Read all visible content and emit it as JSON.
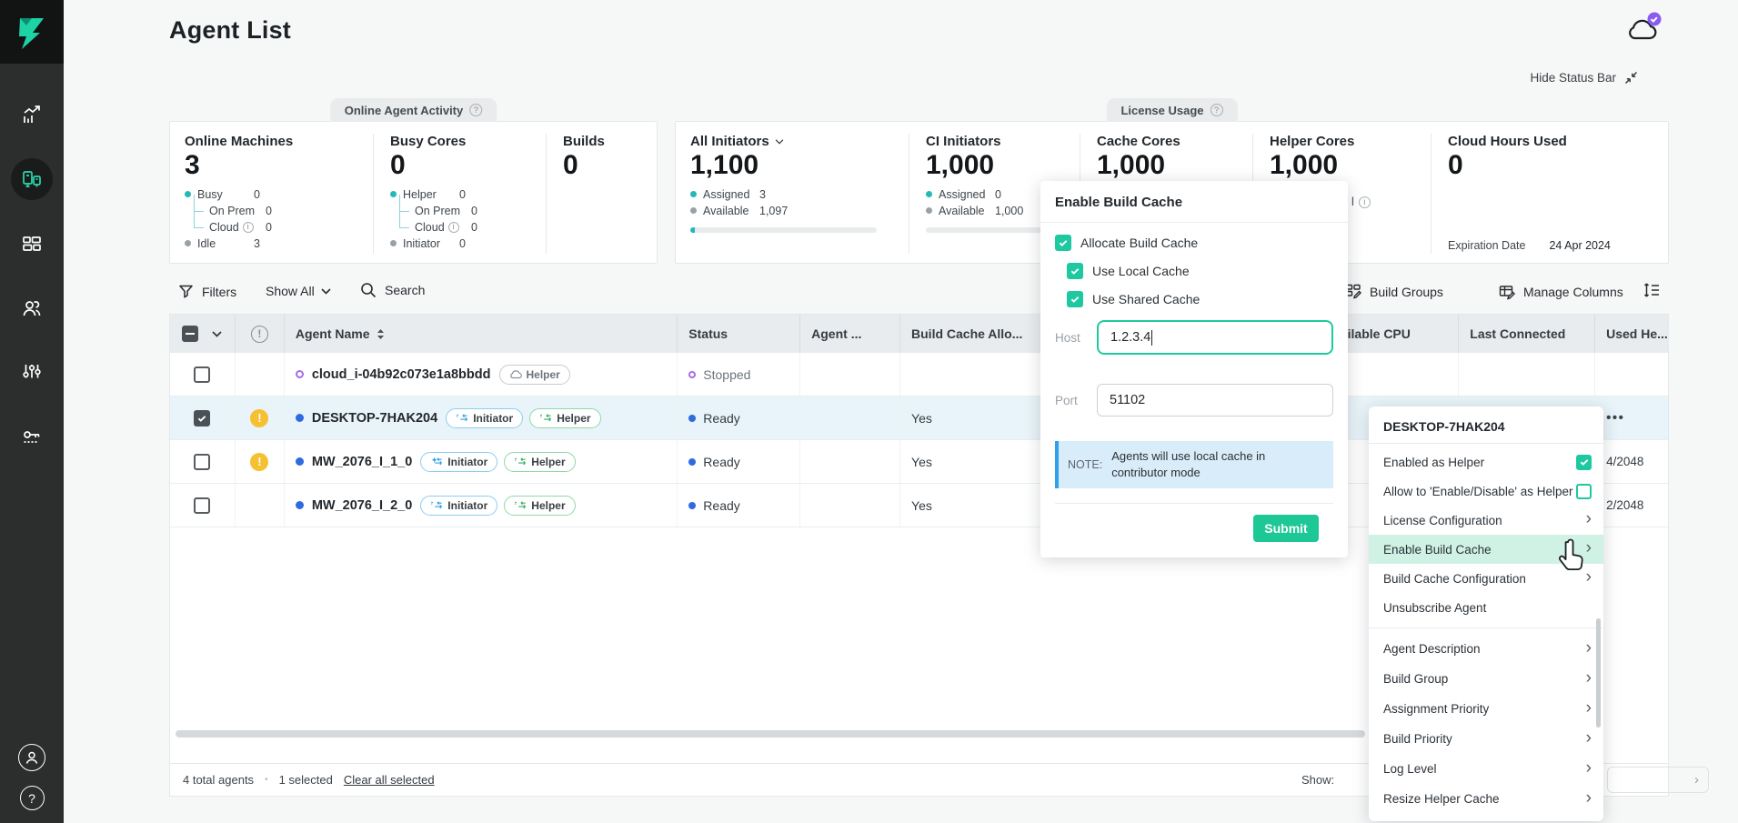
{
  "colors": {
    "accent_teal": "#1dc796",
    "checkbox_teal": "#1ec9a2",
    "note_blue": "#2ea1e8",
    "purple_badge": "#8b5bf0",
    "warning_yellow": "#f5c032",
    "ready_blue": "#2f6be0",
    "stopped_purple": "#a76ee3",
    "legend_teal": "#25b8b8",
    "menu_highlight": "#d0f2e4"
  },
  "sidebar": {
    "icons": [
      "analytics-icon",
      "agents-icon",
      "builds-icon",
      "users-icon",
      "settings-sliders-icon",
      "license-key-icon"
    ],
    "active_index": 1,
    "bottom_icons": [
      "avatar-icon",
      "help-icon"
    ],
    "help_glyph": "?"
  },
  "header": {
    "title": "Agent List",
    "hide_status_bar": "Hide Status Bar"
  },
  "status_bar": {
    "activity": {
      "tab": "Online Agent Activity",
      "metrics": [
        {
          "label": "Online Machines",
          "value": "3",
          "legend": [
            {
              "dot": "teal",
              "label": "Busy",
              "value": "0"
            },
            {
              "tree": true,
              "label": "On Prem",
              "value": "0"
            },
            {
              "tree": true,
              "label": "Cloud",
              "info": true,
              "value": "0"
            },
            {
              "dot": "gray",
              "label": "Idle",
              "value": "3"
            }
          ]
        },
        {
          "label": "Busy Cores",
          "value": "0",
          "legend": [
            {
              "dot": "teal",
              "label": "Helper",
              "value": "0"
            },
            {
              "tree": true,
              "label": "On Prem",
              "value": "0"
            },
            {
              "tree": true,
              "label": "Cloud",
              "info": true,
              "value": "0"
            },
            {
              "dot": "gray",
              "label": "Initiator",
              "value": "0"
            }
          ]
        },
        {
          "label": "Builds",
          "value": "0",
          "legend": []
        }
      ]
    },
    "license": {
      "tab": "License Usage",
      "metrics": [
        {
          "label": "All Initiators",
          "dropdown": true,
          "value": "1,100",
          "bar": true,
          "bar_fill": 5,
          "legend": [
            {
              "dot": "teal",
              "label": "Assigned",
              "value": "3"
            },
            {
              "dot": "gray",
              "label": "Available",
              "value": "1,097"
            }
          ]
        },
        {
          "label": "CI Initiators",
          "value": "1,000",
          "bar": true,
          "bar_fill": 0,
          "legend": [
            {
              "dot": "teal",
              "label": "Assigned",
              "value": "0"
            },
            {
              "dot": "gray",
              "label": "Available",
              "value": "1,000"
            }
          ]
        },
        {
          "label": "Cache Cores",
          "value": "1,000",
          "legend": []
        },
        {
          "label": "Helper Cores",
          "value": "1,000",
          "legend": [],
          "fragment": "l"
        },
        {
          "label": "Cloud Hours Used",
          "value": "0",
          "legend": [],
          "expiration_label": "Expiration Date",
          "expiration_value": "24 Apr 2024"
        }
      ]
    }
  },
  "toolbar": {
    "filters": "Filters",
    "show_all": "Show All",
    "search": "Search",
    "build_groups": "Build Groups",
    "manage_columns": "Manage Columns"
  },
  "table": {
    "columns": [
      "",
      "",
      "Agent Name",
      "Status",
      "Agent ...",
      "Build Cache Allo...",
      "",
      "Available CPU",
      "Last Connected",
      "Used He..."
    ],
    "rows": [
      {
        "name": "cloud_i-04b92c073e1a8bbdd",
        "checked": false,
        "selected": false,
        "warning": false,
        "dot": "stopped",
        "badges": [
          {
            "label": "Helper",
            "type": "cloud"
          }
        ],
        "status": "Stopped",
        "status_dot": "stopped",
        "build_cache": "",
        "right_fragment": "",
        "right_type": "none"
      },
      {
        "name": "DESKTOP-7HAK204",
        "checked": true,
        "selected": true,
        "warning": true,
        "dot": "ready",
        "badges": [
          {
            "label": "Initiator",
            "type": "initiator"
          },
          {
            "label": "Helper",
            "type": "helper"
          }
        ],
        "status": "Ready",
        "status_dot": "ready",
        "build_cache": "Yes",
        "right_fragment": "•••",
        "right_type": "actions"
      },
      {
        "name": "MW_2076_I_1_0",
        "checked": false,
        "selected": false,
        "warning": true,
        "dot": "ready",
        "badges": [
          {
            "label": "Initiator",
            "type": "initiator-pin"
          },
          {
            "label": "Helper",
            "type": "helper"
          }
        ],
        "status": "Ready",
        "status_dot": "ready",
        "build_cache": "Yes",
        "right_fragment": "4/2048",
        "right_type": "text"
      },
      {
        "name": "MW_2076_I_2_0",
        "checked": false,
        "selected": false,
        "warning": false,
        "dot": "ready",
        "badges": [
          {
            "label": "Initiator",
            "type": "initiator"
          },
          {
            "label": "Helper",
            "type": "helper"
          }
        ],
        "status": "Ready",
        "status_dot": "ready",
        "build_cache": "Yes",
        "right_fragment": "2/2048",
        "right_type": "text"
      }
    ]
  },
  "dialog": {
    "title": "Enable Build Cache",
    "checkboxes": [
      {
        "label": "Allocate Build Cache",
        "checked": true,
        "indent": false
      },
      {
        "label": "Use Local Cache",
        "checked": true,
        "indent": true
      },
      {
        "label": "Use Shared Cache",
        "checked": true,
        "indent": true
      }
    ],
    "host_label": "Host",
    "host_value": "1.2.3.4",
    "port_label": "Port",
    "port_value": "51102",
    "note_label": "NOTE:",
    "note_text": "Agents will use local cache in contributor mode",
    "submit": "Submit"
  },
  "context_menu": {
    "title": "DESKTOP-7HAK204",
    "items": [
      {
        "label": "Enabled as Helper",
        "control": "checkbox-checked",
        "group": 1
      },
      {
        "label": "Allow to 'Enable/Disable' as Helper",
        "control": "checkbox-unchecked",
        "group": 1
      },
      {
        "label": "License Configuration",
        "control": "chevron",
        "group": 1
      },
      {
        "label": "Enable Build Cache",
        "control": "chevron",
        "group": 1,
        "highlight": true
      },
      {
        "label": "Build Cache Configuration",
        "control": "chevron",
        "group": 1
      },
      {
        "label": "Unsubscribe Agent",
        "control": "none",
        "group": 1
      },
      {
        "label": "Agent Description",
        "control": "chevron",
        "group": 2
      },
      {
        "label": "Build Group",
        "control": "chevron",
        "group": 2
      },
      {
        "label": "Assignment Priority",
        "control": "chevron",
        "group": 2
      },
      {
        "label": "Build Priority",
        "control": "chevron",
        "group": 2
      },
      {
        "label": "Log Level",
        "control": "chevron",
        "group": 2
      },
      {
        "label": "Resize Helper Cache",
        "control": "chevron",
        "group": 2
      }
    ]
  },
  "footer": {
    "total": "4 total agents",
    "separator": "•",
    "selected": "1 selected",
    "clear": "Clear all selected",
    "show_label": "Show:",
    "next_glyph": "›"
  }
}
